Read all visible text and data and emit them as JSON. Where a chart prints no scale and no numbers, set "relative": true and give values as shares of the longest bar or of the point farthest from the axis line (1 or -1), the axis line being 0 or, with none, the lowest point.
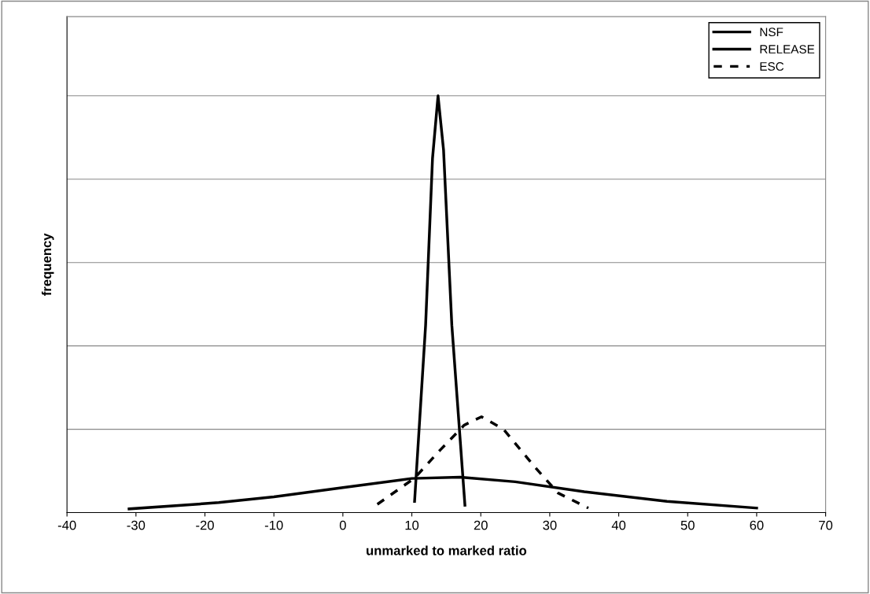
{
  "chart_data": {
    "type": "line",
    "relative": true,
    "xlabel": "unmarked to marked ratio",
    "ylabel": "frequency",
    "xlim": [
      -40,
      70
    ],
    "xticks": [
      -40,
      -30,
      -20,
      -10,
      0,
      10,
      20,
      30,
      40,
      50,
      60,
      70
    ],
    "grid": "y",
    "legend": "top right",
    "marker": "none",
    "series": [
      {
        "name": "NSF",
        "color": "#000000",
        "line_style": "solid",
        "x": [
          -31,
          -18,
          -10,
          0,
          10,
          17,
          25,
          35,
          47,
          60
        ],
        "values": [
          0.009,
          0.024,
          0.038,
          0.06,
          0.082,
          0.085,
          0.074,
          0.05,
          0.027,
          0.011
        ]
      },
      {
        "name": "RELEASE",
        "color": "#000000",
        "line_style": "solid",
        "x": [
          10.4,
          12,
          13,
          13.8,
          14.6,
          15.8,
          17.7
        ],
        "values": [
          0.027,
          0.45,
          0.85,
          1.0,
          0.87,
          0.45,
          0.018
        ]
      },
      {
        "name": "ESC",
        "color": "#000000",
        "line_style": "dashed",
        "x": [
          5,
          10.4,
          14.1,
          17.6,
          20.1,
          23.3,
          27.8,
          31.2,
          35.6
        ],
        "values": [
          0.02,
          0.083,
          0.15,
          0.21,
          0.23,
          0.2,
          0.11,
          0.047,
          0.011
        ]
      }
    ]
  }
}
